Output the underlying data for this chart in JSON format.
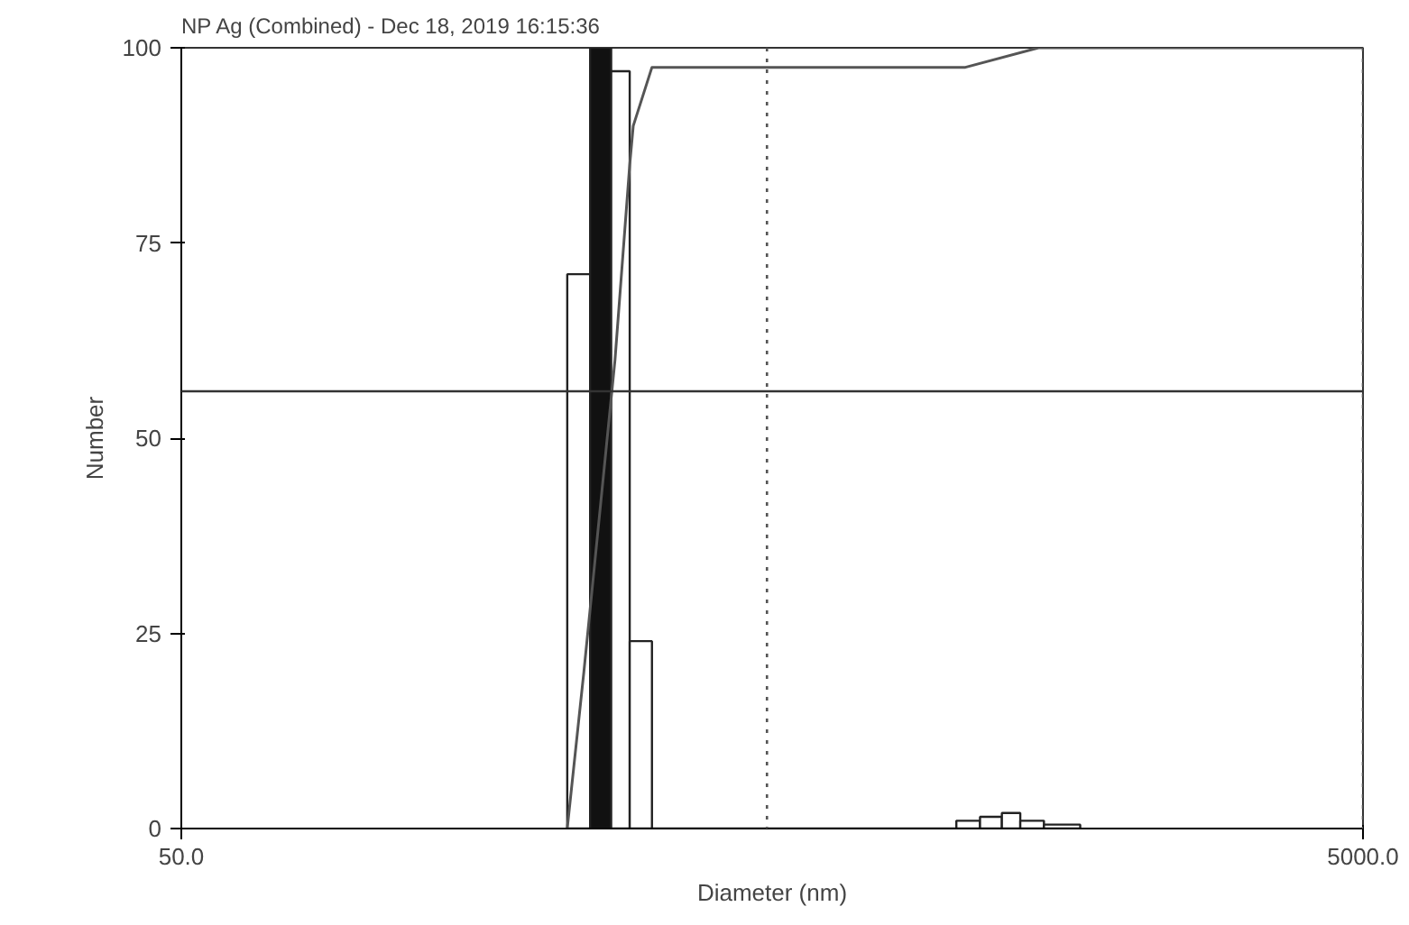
{
  "chart_data": {
    "type": "histogram",
    "title": "NP Ag (Combined) - Dec 18, 2019  16:15:36",
    "xlabel": "Diameter (nm)",
    "ylabel": "Number",
    "log": "x",
    "xlim": [
      50,
      5000
    ],
    "xticks": [
      {
        "value": 50,
        "label": "50.0"
      },
      {
        "value": 5000,
        "label": "5000.0"
      }
    ],
    "ylim": [
      0,
      100
    ],
    "yticks": [
      0,
      25,
      50,
      75,
      100
    ],
    "grid": false,
    "series": [
      {
        "bins": [
          225,
          246,
          267,
          287,
          313,
          1025,
          1124,
          1224,
          1315,
          1442,
          1661
        ],
        "values": [
          71,
          100,
          97,
          24,
          0,
          1,
          1.5,
          2,
          1,
          0.5
        ],
        "colors": [
          "#ffffff",
          "#111111",
          "#ffffff",
          "#ffffff",
          "#ffffff",
          "#ffffff",
          "#ffffff",
          "#ffffff",
          "#ffffff",
          "#ffffff"
        ]
      },
      {
        "type": "line",
        "color": "#555555",
        "x": [
          225,
          240,
          271,
          287,
          291,
          313,
          1062,
          1412,
          5000
        ],
        "values": [
          0,
          20,
          60,
          85,
          90,
          97.5,
          97.5,
          100,
          100
        ]
      }
    ],
    "ref_lines": [
      {
        "axis": "y",
        "value": 56,
        "color": "#333333",
        "line_style": "solid"
      },
      {
        "axis": "x",
        "value": 490,
        "color": "#555555",
        "line_style": "dotted"
      },
      {
        "axis": "x",
        "value": 5000,
        "color": "#555555",
        "line_style": "dotted"
      }
    ]
  }
}
